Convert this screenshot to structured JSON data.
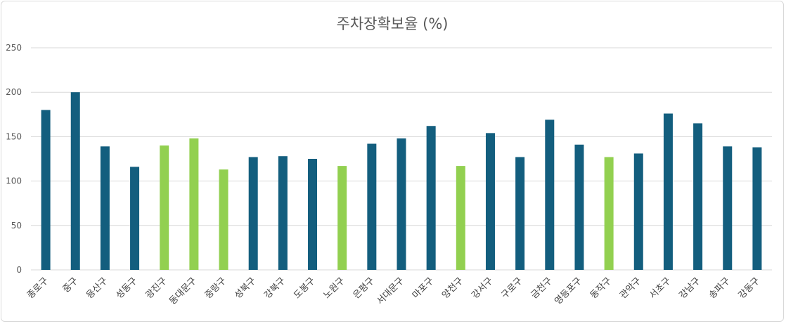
{
  "chart_data": {
    "type": "bar",
    "title": "주차장확보율 (%)",
    "xlabel": "",
    "ylabel": "",
    "ylim": [
      0,
      250
    ],
    "yticks": [
      0,
      50,
      100,
      150,
      200,
      250
    ],
    "grid": true,
    "legend": "none",
    "categories": [
      "종로구",
      "중구",
      "용산구",
      "성동구",
      "광진구",
      "동대문구",
      "중랑구",
      "성북구",
      "강북구",
      "도봉구",
      "노원구",
      "은평구",
      "서대문구",
      "마포구",
      "양천구",
      "강서구",
      "구로구",
      "금천구",
      "영등포구",
      "동작구",
      "관악구",
      "서초구",
      "강남구",
      "송파구",
      "강동구"
    ],
    "values": [
      180,
      200,
      139,
      116,
      140,
      148,
      113,
      127,
      128,
      125,
      117,
      142,
      148,
      162,
      117,
      154,
      127,
      169,
      141,
      127,
      131,
      176,
      165,
      139,
      138
    ],
    "highlighted": [
      false,
      false,
      false,
      false,
      true,
      true,
      true,
      false,
      false,
      false,
      true,
      false,
      false,
      false,
      true,
      false,
      false,
      false,
      false,
      true,
      false,
      false,
      false,
      false,
      false
    ],
    "colors": {
      "default": "#135e7e",
      "highlight": "#92d050",
      "grid": "#d9d9d9",
      "text": "#595959"
    }
  }
}
